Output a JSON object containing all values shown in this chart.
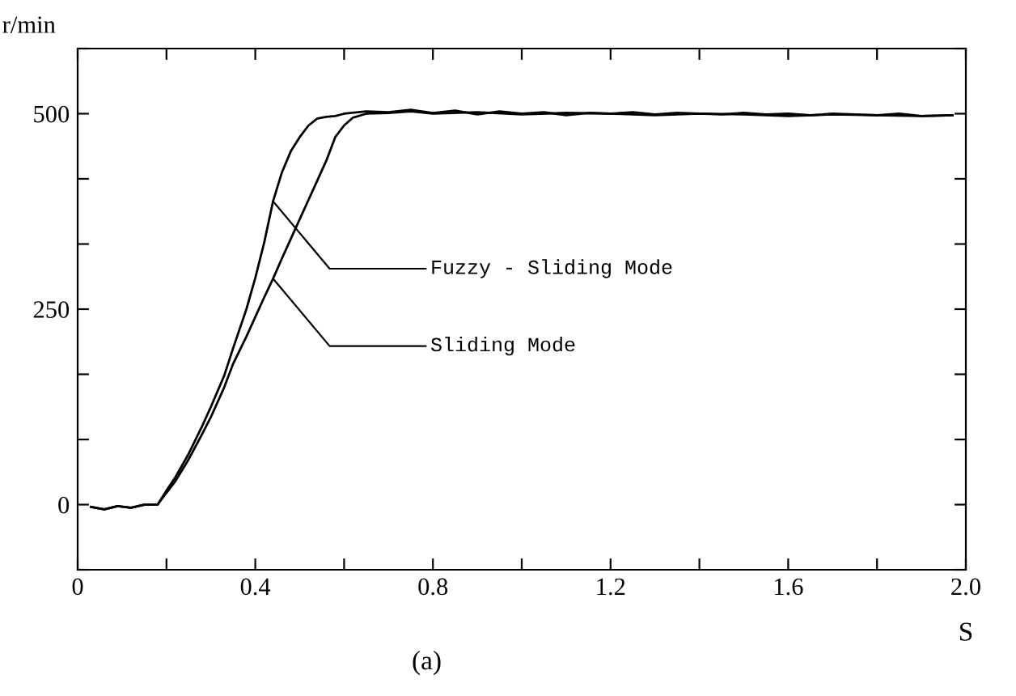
{
  "chart_data": {
    "type": "line",
    "xlabel": "S",
    "ylabel": "r/min",
    "series": [
      {
        "color": "#000000",
        "x": [
          0.03,
          0.06,
          0.09,
          0.12,
          0.15,
          0.18,
          0.2,
          0.22,
          0.25,
          0.28,
          0.3,
          0.33,
          0.35,
          0.38,
          0.4,
          0.42,
          0.44,
          0.46,
          0.48,
          0.5,
          0.52,
          0.54,
          0.56,
          0.58,
          0.6,
          0.65,
          0.7,
          0.75,
          0.8,
          0.85,
          0.9,
          0.95,
          1.0,
          1.05,
          1.1,
          1.15,
          1.2,
          1.25,
          1.3,
          1.35,
          1.4,
          1.45,
          1.5,
          1.55,
          1.6,
          1.65,
          1.7,
          1.75,
          1.8,
          1.85,
          1.9,
          1.97
        ],
        "values": [
          -3,
          -6,
          -2,
          -4,
          0,
          0,
          18,
          35,
          65,
          100,
          125,
          165,
          200,
          250,
          290,
          335,
          388,
          425,
          452,
          470,
          485,
          494,
          496,
          497,
          500,
          503,
          502,
          505,
          501,
          504,
          499,
          503,
          500,
          502,
          498,
          501,
          500,
          502,
          499,
          501,
          500,
          499,
          501,
          499,
          500,
          498,
          500,
          499,
          498,
          500,
          497,
          498
        ]
      },
      {
        "color": "#000000",
        "x": [
          0.03,
          0.06,
          0.09,
          0.12,
          0.15,
          0.18,
          0.2,
          0.22,
          0.25,
          0.28,
          0.3,
          0.33,
          0.35,
          0.38,
          0.4,
          0.42,
          0.44,
          0.46,
          0.48,
          0.5,
          0.52,
          0.54,
          0.56,
          0.58,
          0.6,
          0.62,
          0.65,
          0.7,
          0.75,
          0.8,
          0.9,
          1.0,
          1.1,
          1.2,
          1.3,
          1.4,
          1.5,
          1.6,
          1.7,
          1.8,
          1.9,
          1.97
        ],
        "values": [
          -3,
          -6,
          -2,
          -4,
          0,
          0,
          15,
          30,
          58,
          90,
          112,
          150,
          180,
          215,
          240,
          265,
          289,
          315,
          340,
          365,
          390,
          415,
          440,
          470,
          485,
          495,
          500,
          501,
          503,
          500,
          502,
          499,
          501,
          500,
          498,
          500,
          499,
          497,
          499,
          498,
          497,
          498
        ]
      }
    ],
    "xlim": [
      0,
      2.0
    ],
    "xticks": [
      0,
      {
        "value": 0.2,
        "label": null
      },
      0.4,
      {
        "value": 0.6,
        "label": null
      },
      0.8,
      {
        "value": 1.0,
        "label": null
      },
      1.2,
      {
        "value": 1.4,
        "label": null
      },
      1.6,
      {
        "value": 1.8,
        "label": null
      },
      {
        "value": 2.0,
        "label": "2.0"
      }
    ],
    "ylim": [
      -83.3,
      583.3
    ],
    "yticks": [
      {
        "value": -83.3,
        "label": null
      },
      0,
      {
        "value": 83.3,
        "label": null
      },
      {
        "value": 166.7,
        "label": null
      },
      250,
      {
        "value": 333.3,
        "label": null
      },
      {
        "value": 416.7,
        "label": null
      },
      500,
      {
        "value": 583.3,
        "label": null
      }
    ],
    "annotations": [
      {
        "text": "Fuzzy - Sliding Mode",
        "x": 0.44,
        "y": 388
      },
      {
        "text": "Sliding Mode",
        "x": 0.44,
        "y": 289
      },
      "(a)"
    ],
    "grid": false,
    "legend": false,
    "marker": "none",
    "line_style": "solid"
  }
}
